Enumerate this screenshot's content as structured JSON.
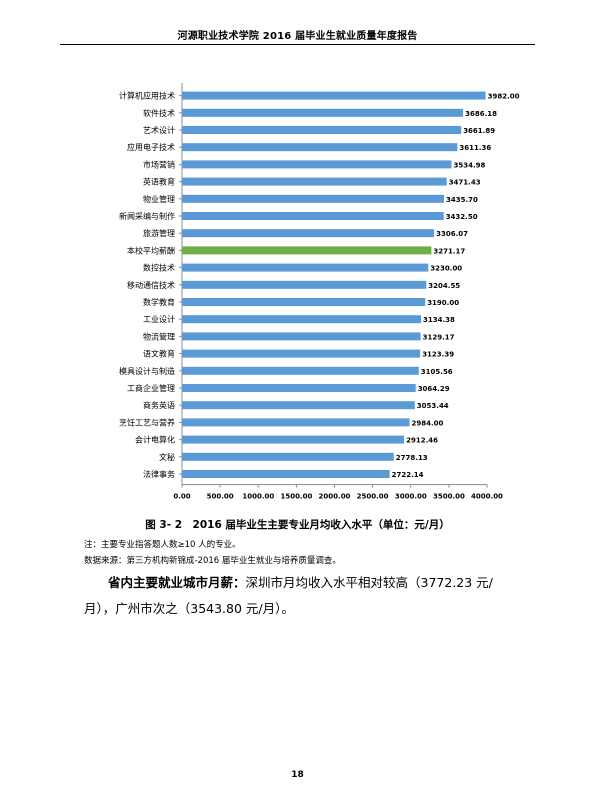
{
  "header": {
    "title": "河源职业技术学院 2016 届毕业生就业质量年度报告"
  },
  "chart_data": {
    "type": "bar",
    "orientation": "horizontal",
    "categories": [
      "计算机应用技术",
      "软件技术",
      "艺术设计",
      "应用电子技术",
      "市场营销",
      "英语教育",
      "物业管理",
      "新闻采编与制作",
      "旅游管理",
      "本校平均薪酬",
      "数控技术",
      "移动通信技术",
      "数学教育",
      "工业设计",
      "物流管理",
      "语文教育",
      "模具设计与制造",
      "工商企业管理",
      "商务英语",
      "烹饪工艺与营养",
      "会计电算化",
      "文秘",
      "法律事务"
    ],
    "values": [
      3982.0,
      3686.18,
      3661.89,
      3611.36,
      3534.98,
      3471.43,
      3435.7,
      3432.5,
      3306.07,
      3271.17,
      3230.0,
      3204.55,
      3190.0,
      3134.38,
      3129.17,
      3123.39,
      3105.56,
      3064.29,
      3053.44,
      2984.0,
      2912.46,
      2778.13,
      2722.14
    ],
    "value_labels": [
      "3982.00",
      "3686.18",
      "3661.89",
      "3611.36",
      "3534.98",
      "3471.43",
      "3435.70",
      "3432.50",
      "3306.07",
      "3271.17",
      "3230.00",
      "3204.55",
      "3190.00",
      "3134.38",
      "3129.17",
      "3123.39",
      "3105.56",
      "3064.29",
      "3053.44",
      "2984.00",
      "2912.46",
      "2778.13",
      "2722.14"
    ],
    "highlight_index": 9,
    "xlim": [
      0,
      4000
    ],
    "xticks": [
      "0.00",
      "500.00",
      "1000.00",
      "1500.00",
      "2000.00",
      "2500.00",
      "3000.00",
      "3500.00",
      "4000.00"
    ],
    "grid": false,
    "colors": {
      "bar": "#5b9bd5",
      "highlight": "#70ad47"
    }
  },
  "figure": {
    "caption": "图 3- 2　2016 届毕业生主要专业月均收入水平（单位：元/月）"
  },
  "notes": {
    "note": "注：主要专业指答题人数≥10 人的专业。",
    "source": "数据来源：第三方机构新锦成-2016 届毕业生就业与培养质量调查。"
  },
  "paragraph": {
    "lead": "省内主要就业城市月薪：",
    "text": "深圳市月均收入水平相对较高（3772.23 元/月），广州市次之（3543.80 元/月）。"
  },
  "footer": {
    "page_number": "18"
  }
}
